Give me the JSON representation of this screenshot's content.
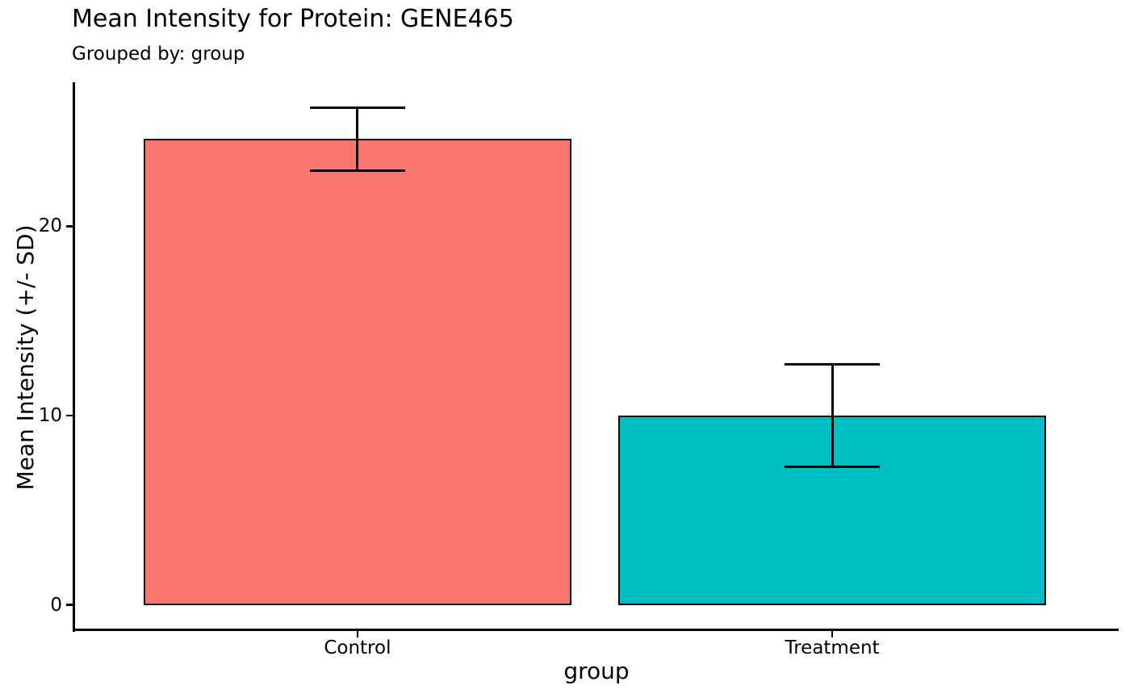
{
  "header": {
    "title": "Mean Intensity for Protein: GENE465",
    "subtitle": "Grouped by: group"
  },
  "chart_data": {
    "type": "bar",
    "title": "Mean Intensity for Protein: GENE465",
    "subtitle": "Grouped by: group",
    "xlabel": "group",
    "ylabel": "Mean Intensity (+/- SD)",
    "categories": [
      "Control",
      "Treatment"
    ],
    "values": [
      24.6,
      10.0
    ],
    "error_sd": [
      1.65,
      2.7
    ],
    "bar_colors": [
      "#F8766D",
      "#00BFC4"
    ],
    "bar_edge_color": "#000000",
    "errorbar_color": "#000000",
    "text_color": "#000000",
    "yticks": [
      0,
      10,
      20
    ],
    "ylim": [
      -1.3,
      27.6
    ],
    "grid": false,
    "legend_visible": false
  }
}
